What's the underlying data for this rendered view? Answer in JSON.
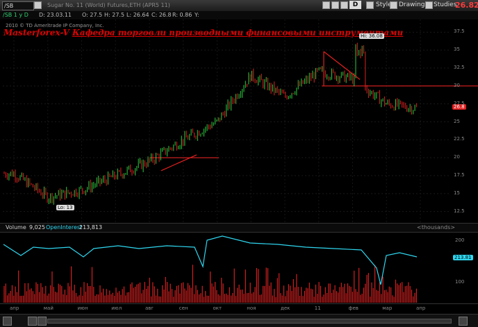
{
  "toolbar": {
    "symbol": "/SB",
    "title": "Sugar No. 11 (World) Futures,ETH (APR5 11)",
    "aggregation_letter": "D",
    "style_label": "Style",
    "drawings_label": "Drawings",
    "studies_label": "Studies",
    "last_price": "26.82"
  },
  "ohlc": {
    "period": "/SB 1 y D",
    "date": "D: 23.03.11",
    "open": "O: 27.5",
    "high": "H: 27.5",
    "low": "L: 26.64",
    "close": "C: 26.8",
    "range": "R: 0.86",
    "yield": "Y:"
  },
  "watermark": {
    "copyright": "2010 © TD Ameritrade IP Company, Inc.",
    "brand_left": "Masterforex-V",
    "brand_right": "Кафедра торговли производными финансовыми инструментами"
  },
  "annotations": {
    "high_label": "Hi: 36.08",
    "low_label": "Lo: 13",
    "current_price_badge": "26.8"
  },
  "price_axis": {
    "ticks": [
      "37.5",
      "35",
      "32.5",
      "30",
      "27.5",
      "25",
      "22.5",
      "20",
      "17.5",
      "15",
      "12.5"
    ]
  },
  "volume_panel": {
    "volume_label": "Volume",
    "volume_value": "9,025",
    "oi_label": "OpenInterest",
    "oi_value": "213,813",
    "units": "<thousands>",
    "axis_ticks": [
      "200",
      "100"
    ],
    "oi_badge": "213.81",
    "oi_color": "#2fd7f0",
    "volume_color": "#d42020"
  },
  "time_axis": {
    "labels": [
      "апр",
      "май",
      "июн",
      "июл",
      "авг",
      "сен",
      "окт",
      "ноя",
      "дек",
      "11",
      "фев",
      "мар",
      "апр"
    ]
  },
  "chart_data": {
    "type": "ohlc",
    "frequency": "daily",
    "monthly_closes": [
      {
        "month": "апр",
        "close": 17.8
      },
      {
        "month": "май",
        "close": 14.5
      },
      {
        "month": "июн",
        "close": 15.5
      },
      {
        "month": "июл",
        "close": 17.5
      },
      {
        "month": "авг",
        "close": 19.5
      },
      {
        "month": "сен",
        "close": 22.5
      },
      {
        "month": "окт",
        "close": 25.0
      },
      {
        "month": "ноя",
        "close": 31.5
      },
      {
        "month": "дек",
        "close": 28.5
      },
      {
        "month": "11",
        "close": 32.0
      },
      {
        "month": "фев",
        "close": 31.0
      },
      {
        "month": "мар",
        "close": 27.5
      },
      {
        "month": "апр",
        "close": 26.8
      }
    ],
    "high": 36.08,
    "low": 13,
    "last": 26.8,
    "ylim": [
      11.5,
      38.5
    ],
    "horizontal_levels": [
      20.0,
      30.0
    ],
    "colors": {
      "up": "#2ecc40",
      "down": "#e02020",
      "trendline": "#e02020"
    }
  }
}
